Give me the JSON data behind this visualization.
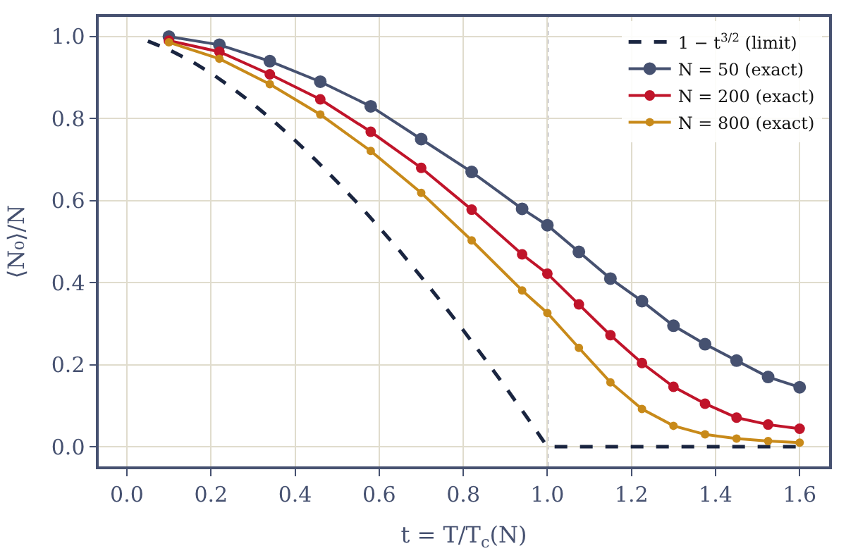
{
  "chart_data": {
    "type": "line",
    "xlabel": "t = T/T$_{c}$(N)",
    "ylabel": "⟨N₀⟩/N",
    "xlim": [
      -0.067,
      1.67
    ],
    "ylim": [
      -0.048,
      1.048
    ],
    "xticks": [
      {
        "value": 0,
        "label": "0.0"
      },
      0.2,
      0.4,
      0.6,
      0.8,
      {
        "value": 1,
        "label": "1.0"
      },
      1.2,
      1.4,
      1.6
    ],
    "yticks": [
      {
        "value": 0,
        "label": "0.0"
      },
      0.2,
      0.4,
      0.6,
      0.8,
      {
        "value": 1,
        "label": "1.0"
      }
    ],
    "grid": true,
    "legend": "top right",
    "marker": "circle",
    "ref_lines": [
      {
        "axis": "x",
        "value": 1.0,
        "color": "#6a6a78",
        "line_style": "dotted"
      }
    ],
    "series": [
      {
        "name": "1 − t$^{3/2}$ (limit)",
        "color": "#1a2540",
        "line_style": "dashed",
        "marker": "none",
        "x": [
          0.05,
          0.1,
          0.15,
          0.2,
          0.25,
          0.3,
          0.35,
          0.4,
          0.45,
          0.5,
          0.55,
          0.6,
          0.65,
          0.7,
          0.75,
          0.8,
          0.85,
          0.9,
          0.95,
          1.0,
          1.6
        ],
        "values": [
          0.989,
          0.968,
          0.942,
          0.911,
          0.875,
          0.836,
          0.793,
          0.747,
          0.698,
          0.646,
          0.592,
          0.535,
          0.476,
          0.414,
          0.35,
          0.284,
          0.216,
          0.146,
          0.074,
          0,
          0
        ]
      },
      {
        "name": "N = 50 (exact)",
        "color": "#465170",
        "x": [
          0.1,
          0.22,
          0.34,
          0.46,
          0.58,
          0.7,
          0.82,
          0.94,
          1.0,
          1.075,
          1.15,
          1.225,
          1.3,
          1.375,
          1.45,
          1.525,
          1.6
        ],
        "values": [
          1.0,
          0.98,
          0.94,
          0.89,
          0.83,
          0.75,
          0.67,
          0.58,
          0.54,
          0.475,
          0.41,
          0.355,
          0.295,
          0.25,
          0.21,
          0.17,
          0.145
        ]
      },
      {
        "name": "N = 200 (exact)",
        "color": "#c0142a",
        "x": [
          0.1,
          0.22,
          0.34,
          0.46,
          0.58,
          0.7,
          0.82,
          0.94,
          1.0,
          1.075,
          1.15,
          1.225,
          1.3,
          1.375,
          1.45,
          1.525,
          1.6
        ],
        "values": [
          0.99,
          0.963,
          0.908,
          0.847,
          0.768,
          0.68,
          0.578,
          0.469,
          0.422,
          0.347,
          0.272,
          0.204,
          0.146,
          0.105,
          0.071,
          0.054,
          0.044
        ]
      },
      {
        "name": "N = 800 (exact)",
        "color": "#c88a1a",
        "x": [
          0.1,
          0.22,
          0.34,
          0.46,
          0.58,
          0.7,
          0.82,
          0.94,
          1.0,
          1.075,
          1.15,
          1.225,
          1.3,
          1.375,
          1.45,
          1.525,
          1.6
        ],
        "values": [
          0.986,
          0.946,
          0.884,
          0.81,
          0.721,
          0.619,
          0.503,
          0.381,
          0.326,
          0.241,
          0.157,
          0.092,
          0.051,
          0.03,
          0.02,
          0.014,
          0.01
        ]
      }
    ]
  }
}
